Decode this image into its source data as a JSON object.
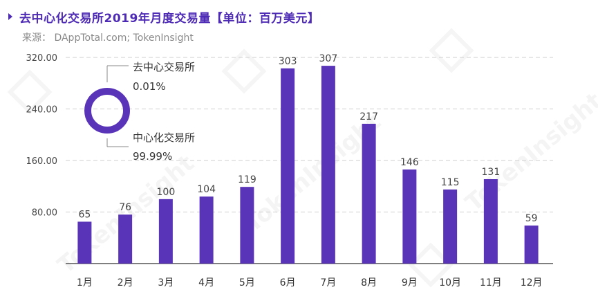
{
  "header": {
    "title": "去中心化交易所2019年月度交易量【单位：百万美元】",
    "source": "来源： DAppTotal.com; TokenInsight"
  },
  "watermark": "TokenInsight",
  "colors": {
    "bar": "#5a34b8",
    "accent": "#4e2bb5",
    "grid": "#cfcfcf",
    "axis": "#555555"
  },
  "donut": {
    "labels": [
      {
        "name": "去中心交易所",
        "value": "0.01%"
      },
      {
        "name": "中心化交易所",
        "value": "99.99%"
      }
    ],
    "shares": [
      0.01,
      99.99
    ]
  },
  "chart_data": {
    "type": "bar",
    "categories": [
      "1月",
      "2月",
      "3月",
      "4月",
      "5月",
      "6月",
      "7月",
      "8月",
      "9月",
      "10月",
      "11月",
      "12月"
    ],
    "values": [
      65,
      76,
      100,
      104,
      119,
      303,
      307,
      217,
      146,
      115,
      131,
      59
    ],
    "yticks": [
      "80.00",
      "160.00",
      "240.00",
      "320.00"
    ],
    "ylim": [
      0,
      320
    ],
    "grid": true,
    "title": "",
    "xlabel": "",
    "ylabel": ""
  }
}
